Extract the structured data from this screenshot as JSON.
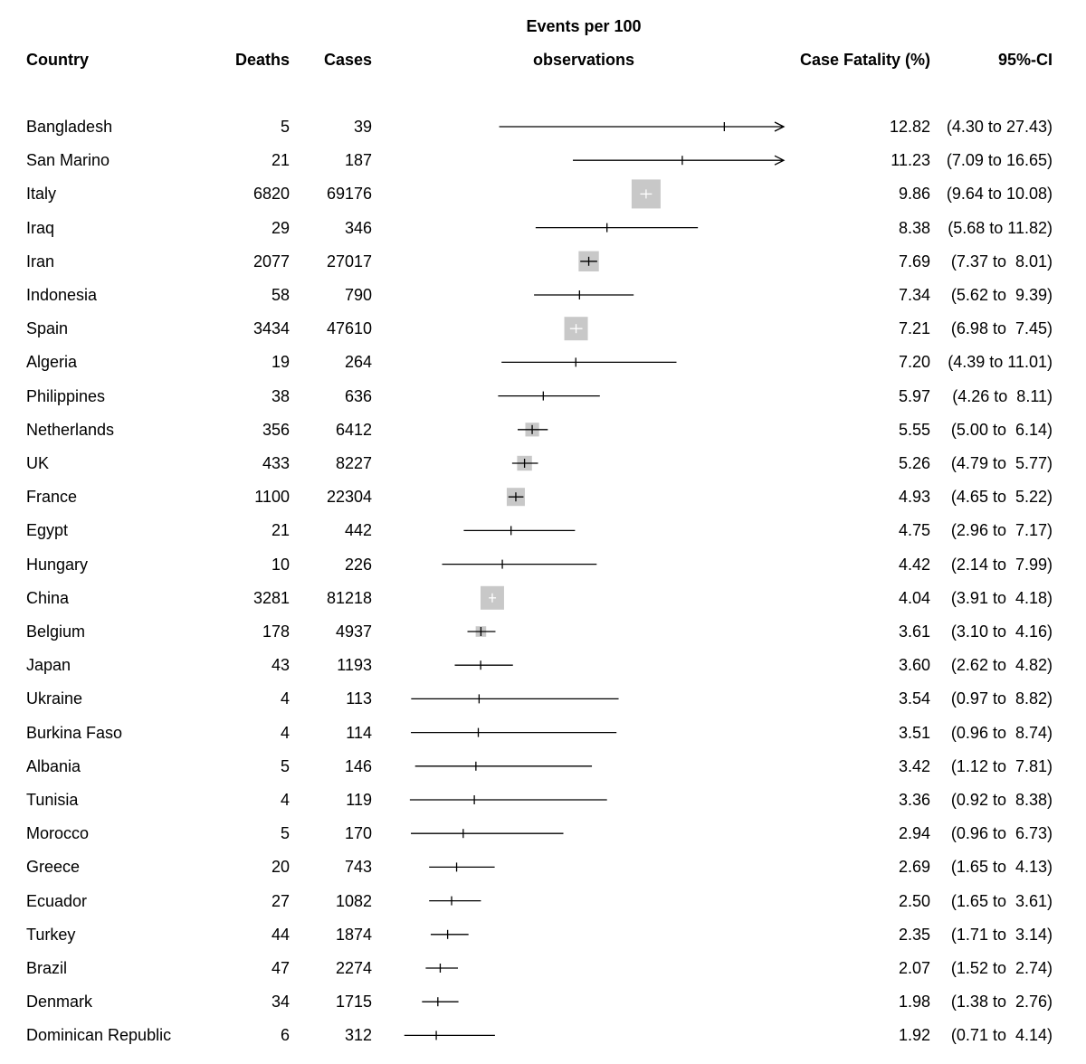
{
  "chart_data": {
    "type": "forest",
    "title": "",
    "columns": {
      "country": "Country",
      "deaths": "Deaths",
      "cases": "Cases",
      "plot_line1": "Events per 100",
      "plot_line2": "observations",
      "cfr": "Case Fatality (%)",
      "ci": "95%-CI"
    },
    "xlim": [
      0,
      15
    ],
    "box_color": "#c8c8c8",
    "rows": [
      {
        "country": "Bangladesh",
        "deaths": "5",
        "cases": "39",
        "cfr": 12.82,
        "lo": 4.3,
        "hi": 27.43,
        "cfr_label": "12.82",
        "ci_label": "(4.30 to 27.43)",
        "weight": 0
      },
      {
        "country": "San Marino",
        "deaths": "21",
        "cases": "187",
        "cfr": 11.23,
        "lo": 7.09,
        "hi": 16.65,
        "cfr_label": "11.23",
        "ci_label": "(7.09 to 16.65)",
        "weight": 0
      },
      {
        "country": "Italy",
        "deaths": "6820",
        "cases": "69176",
        "cfr": 9.86,
        "lo": 9.64,
        "hi": 10.08,
        "cfr_label": "9.86",
        "ci_label": "(9.64 to 10.08)",
        "weight": 1.0
      },
      {
        "country": "Iraq",
        "deaths": "29",
        "cases": "346",
        "cfr": 8.38,
        "lo": 5.68,
        "hi": 11.82,
        "cfr_label": "8.38",
        "ci_label": "(5.68 to 11.82)",
        "weight": 0
      },
      {
        "country": "Iran",
        "deaths": "2077",
        "cases": "27017",
        "cfr": 7.69,
        "lo": 7.37,
        "hi": 8.01,
        "cfr_label": "7.69",
        "ci_label": " (7.37 to  8.01)",
        "weight": 0.6
      },
      {
        "country": "Indonesia",
        "deaths": "58",
        "cases": "790",
        "cfr": 7.34,
        "lo": 5.62,
        "hi": 9.39,
        "cfr_label": "7.34",
        "ci_label": " (5.62 to  9.39)",
        "weight": 0
      },
      {
        "country": "Spain",
        "deaths": "3434",
        "cases": "47610",
        "cfr": 7.21,
        "lo": 6.98,
        "hi": 7.45,
        "cfr_label": "7.21",
        "ci_label": " (6.98 to  7.45)",
        "weight": 0.75
      },
      {
        "country": "Algeria",
        "deaths": "19",
        "cases": "264",
        "cfr": 7.2,
        "lo": 4.39,
        "hi": 11.01,
        "cfr_label": "7.20",
        "ci_label": "(4.39 to 11.01)",
        "weight": 0
      },
      {
        "country": "Philippines",
        "deaths": "38",
        "cases": "636",
        "cfr": 5.97,
        "lo": 4.26,
        "hi": 8.11,
        "cfr_label": "5.97",
        "ci_label": " (4.26 to  8.11)",
        "weight": 0
      },
      {
        "country": "Netherlands",
        "deaths": "356",
        "cases": "6412",
        "cfr": 5.55,
        "lo": 5.0,
        "hi": 6.14,
        "cfr_label": "5.55",
        "ci_label": " (5.00 to  6.14)",
        "weight": 0.3
      },
      {
        "country": "UK",
        "deaths": "433",
        "cases": "8227",
        "cfr": 5.26,
        "lo": 4.79,
        "hi": 5.77,
        "cfr_label": "5.26",
        "ci_label": " (4.79 to  5.77)",
        "weight": 0.35
      },
      {
        "country": "France",
        "deaths": "1100",
        "cases": "22304",
        "cfr": 4.93,
        "lo": 4.65,
        "hi": 5.22,
        "cfr_label": "4.93",
        "ci_label": " (4.65 to  5.22)",
        "weight": 0.5
      },
      {
        "country": "Egypt",
        "deaths": "21",
        "cases": "442",
        "cfr": 4.75,
        "lo": 2.96,
        "hi": 7.17,
        "cfr_label": "4.75",
        "ci_label": " (2.96 to  7.17)",
        "weight": 0
      },
      {
        "country": "Hungary",
        "deaths": "10",
        "cases": "226",
        "cfr": 4.42,
        "lo": 2.14,
        "hi": 7.99,
        "cfr_label": "4.42",
        "ci_label": " (2.14 to  7.99)",
        "weight": 0
      },
      {
        "country": "China",
        "deaths": "3281",
        "cases": "81218",
        "cfr": 4.04,
        "lo": 3.91,
        "hi": 4.18,
        "cfr_label": "4.04",
        "ci_label": " (3.91 to  4.18)",
        "weight": 0.75
      },
      {
        "country": "Belgium",
        "deaths": "178",
        "cases": "4937",
        "cfr": 3.61,
        "lo": 3.1,
        "hi": 4.16,
        "cfr_label": "3.61",
        "ci_label": " (3.10 to  4.16)",
        "weight": 0.15
      },
      {
        "country": "Japan",
        "deaths": "43",
        "cases": "1193",
        "cfr": 3.6,
        "lo": 2.62,
        "hi": 4.82,
        "cfr_label": "3.60",
        "ci_label": " (2.62 to  4.82)",
        "weight": 0
      },
      {
        "country": "Ukraine",
        "deaths": "4",
        "cases": "113",
        "cfr": 3.54,
        "lo": 0.97,
        "hi": 8.82,
        "cfr_label": "3.54",
        "ci_label": " (0.97 to  8.82)",
        "weight": 0
      },
      {
        "country": "Burkina Faso",
        "deaths": "4",
        "cases": "114",
        "cfr": 3.51,
        "lo": 0.96,
        "hi": 8.74,
        "cfr_label": "3.51",
        "ci_label": " (0.96 to  8.74)",
        "weight": 0
      },
      {
        "country": "Albania",
        "deaths": "5",
        "cases": "146",
        "cfr": 3.42,
        "lo": 1.12,
        "hi": 7.81,
        "cfr_label": "3.42",
        "ci_label": " (1.12 to  7.81)",
        "weight": 0
      },
      {
        "country": "Tunisia",
        "deaths": "4",
        "cases": "119",
        "cfr": 3.36,
        "lo": 0.92,
        "hi": 8.38,
        "cfr_label": "3.36",
        "ci_label": " (0.92 to  8.38)",
        "weight": 0
      },
      {
        "country": "Morocco",
        "deaths": "5",
        "cases": "170",
        "cfr": 2.94,
        "lo": 0.96,
        "hi": 6.73,
        "cfr_label": "2.94",
        "ci_label": " (0.96 to  6.73)",
        "weight": 0
      },
      {
        "country": "Greece",
        "deaths": "20",
        "cases": "743",
        "cfr": 2.69,
        "lo": 1.65,
        "hi": 4.13,
        "cfr_label": "2.69",
        "ci_label": " (1.65 to  4.13)",
        "weight": 0
      },
      {
        "country": "Ecuador",
        "deaths": "27",
        "cases": "1082",
        "cfr": 2.5,
        "lo": 1.65,
        "hi": 3.61,
        "cfr_label": "2.50",
        "ci_label": " (1.65 to  3.61)",
        "weight": 0
      },
      {
        "country": "Turkey",
        "deaths": "44",
        "cases": "1874",
        "cfr": 2.35,
        "lo": 1.71,
        "hi": 3.14,
        "cfr_label": "2.35",
        "ci_label": " (1.71 to  3.14)",
        "weight": 0
      },
      {
        "country": "Brazil",
        "deaths": "47",
        "cases": "2274",
        "cfr": 2.07,
        "lo": 1.52,
        "hi": 2.74,
        "cfr_label": "2.07",
        "ci_label": " (1.52 to  2.74)",
        "weight": 0
      },
      {
        "country": "Denmark",
        "deaths": "34",
        "cases": "1715",
        "cfr": 1.98,
        "lo": 1.38,
        "hi": 2.76,
        "cfr_label": "1.98",
        "ci_label": " (1.38 to  2.76)",
        "weight": 0
      },
      {
        "country": "Dominican Republic",
        "deaths": "6",
        "cases": "312",
        "cfr": 1.92,
        "lo": 0.71,
        "hi": 4.14,
        "cfr_label": "1.92",
        "ci_label": " (0.71 to  4.14)",
        "weight": 0
      }
    ]
  }
}
